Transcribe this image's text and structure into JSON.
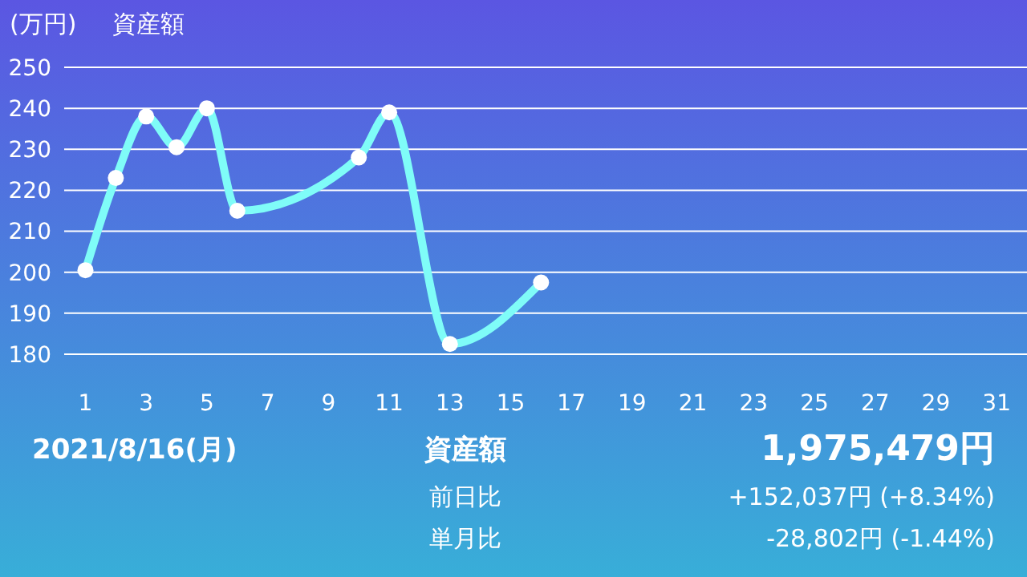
{
  "chart_data": {
    "type": "line",
    "title": "資産額",
    "ylabel": "(万円)",
    "x": [
      1,
      2,
      3,
      4,
      5,
      6,
      10,
      11,
      13,
      16
    ],
    "series": [
      {
        "color": "#7ffcf8",
        "values": [
          200.5,
          223,
          238,
          230.5,
          240,
          215,
          228,
          239,
          182.5,
          197.5
        ]
      }
    ],
    "xlim": [
      0.3,
      32
    ],
    "xticks": [
      1,
      3,
      5,
      7,
      9,
      11,
      13,
      15,
      17,
      19,
      21,
      23,
      25,
      27,
      29,
      31
    ],
    "ylim": [
      180,
      250
    ],
    "yticks": [
      180,
      190,
      200,
      210,
      220,
      230,
      240,
      250
    ],
    "grid": "y",
    "marker": "circle",
    "line_style": "solid",
    "annotations": [
      "2021/8/16(月)",
      "資産額",
      "1,975,479円",
      "前日比",
      "+152,037円 (+8.34%)",
      "単月比",
      "-28,802円 (-1.44%)"
    ]
  }
}
